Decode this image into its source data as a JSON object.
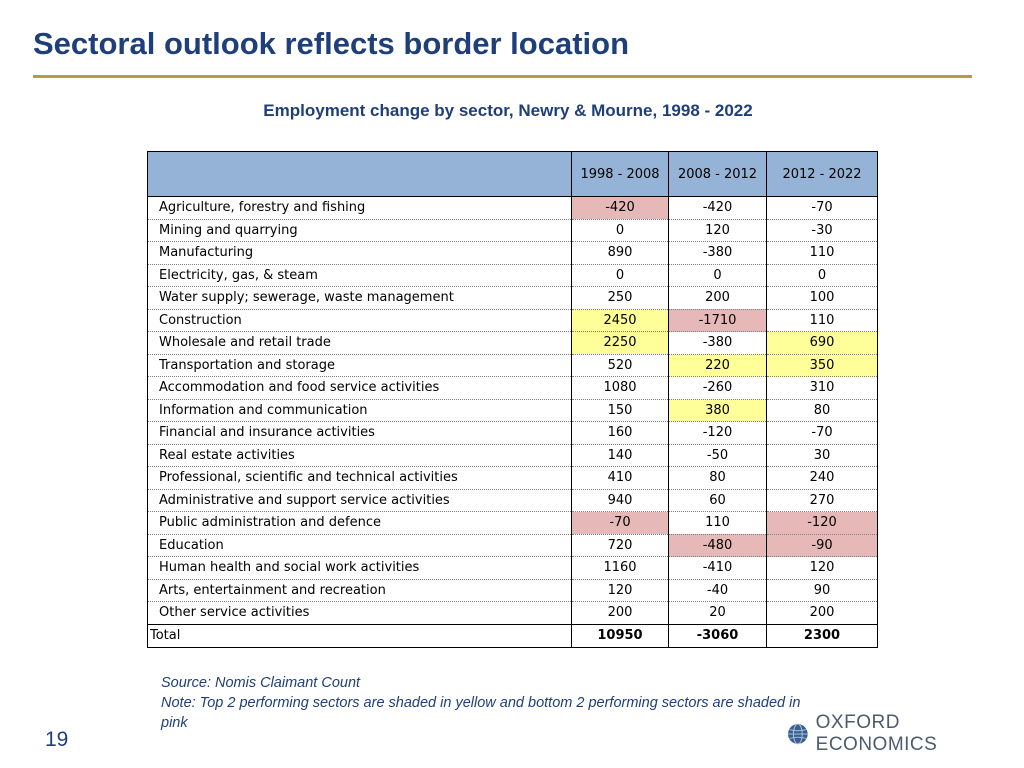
{
  "title": "Sectoral outlook reflects border location",
  "subtitle": "Employment change by sector, Newry & Mourne, 1998 - 2022",
  "table": {
    "headers": [
      "",
      "1998 - 2008",
      "2008 - 2012",
      "2012 - 2022"
    ],
    "rows": [
      {
        "sector": "Agriculture, forestry and fishing",
        "values": [
          "-420",
          "-420",
          "-70"
        ],
        "highlight": [
          "pink",
          "",
          ""
        ]
      },
      {
        "sector": "Mining and quarrying",
        "values": [
          "0",
          "120",
          "-30"
        ],
        "highlight": [
          "",
          "",
          ""
        ]
      },
      {
        "sector": "Manufacturing",
        "values": [
          "890",
          "-380",
          "110"
        ],
        "highlight": [
          "",
          "",
          ""
        ]
      },
      {
        "sector": "Electricity, gas,  & steam",
        "values": [
          "0",
          "0",
          "0"
        ],
        "highlight": [
          "",
          "",
          ""
        ]
      },
      {
        "sector": "Water supply; sewerage, waste management",
        "values": [
          "250",
          "200",
          "100"
        ],
        "highlight": [
          "",
          "",
          ""
        ]
      },
      {
        "sector": "Construction",
        "values": [
          "2450",
          "-1710",
          "110"
        ],
        "highlight": [
          "yellow",
          "pink",
          ""
        ]
      },
      {
        "sector": "Wholesale and retail trade",
        "values": [
          "2250",
          "-380",
          "690"
        ],
        "highlight": [
          "yellow",
          "",
          "yellow"
        ]
      },
      {
        "sector": "Transportation and storage",
        "values": [
          "520",
          "220",
          "350"
        ],
        "highlight": [
          "",
          "yellow",
          "yellow"
        ]
      },
      {
        "sector": "Accommodation and food service activities",
        "values": [
          "1080",
          "-260",
          "310"
        ],
        "highlight": [
          "",
          "",
          ""
        ]
      },
      {
        "sector": "Information and communication",
        "values": [
          "150",
          "380",
          "80"
        ],
        "highlight": [
          "",
          "yellow",
          ""
        ]
      },
      {
        "sector": "Financial and insurance activities",
        "values": [
          "160",
          "-120",
          "-70"
        ],
        "highlight": [
          "",
          "",
          ""
        ]
      },
      {
        "sector": "Real estate activities",
        "values": [
          "140",
          "-50",
          "30"
        ],
        "highlight": [
          "",
          "",
          ""
        ]
      },
      {
        "sector": "Professional, scientific and technical activities",
        "values": [
          "410",
          "80",
          "240"
        ],
        "highlight": [
          "",
          "",
          ""
        ]
      },
      {
        "sector": "Administrative and support service activities",
        "values": [
          "940",
          "60",
          "270"
        ],
        "highlight": [
          "",
          "",
          ""
        ]
      },
      {
        "sector": "Public administration and defence",
        "values": [
          "-70",
          "110",
          "-120"
        ],
        "highlight": [
          "pink",
          "",
          "pink"
        ]
      },
      {
        "sector": "Education",
        "values": [
          "720",
          "-480",
          "-90"
        ],
        "highlight": [
          "",
          "pink",
          "pink"
        ]
      },
      {
        "sector": "Human health and social work activities",
        "values": [
          "1160",
          "-410",
          "120"
        ],
        "highlight": [
          "",
          "",
          ""
        ]
      },
      {
        "sector": "Arts, entertainment and recreation",
        "values": [
          "120",
          "-40",
          "90"
        ],
        "highlight": [
          "",
          "",
          ""
        ]
      },
      {
        "sector": "Other service activities",
        "values": [
          "200",
          "20",
          "200"
        ],
        "highlight": [
          "",
          "",
          ""
        ]
      }
    ],
    "total": {
      "label": "Total",
      "values": [
        "10950",
        "-3060",
        "2300"
      ]
    }
  },
  "notes": {
    "source": "Source: Nomis Claimant Count",
    "note": "Note: Top 2 performing sectors are shaded in yellow and bottom 2 performing sectors are shaded in pink"
  },
  "page_number": "19",
  "logo": {
    "text": "OXFORD ECONOMICS",
    "icon": "globe-icon"
  },
  "colors": {
    "title": "#1f3f7a",
    "rule": "#b79b4a",
    "header_fill": "#95b3d7",
    "top_highlight": "#ffff99",
    "bottom_highlight": "#e6b8b7"
  }
}
